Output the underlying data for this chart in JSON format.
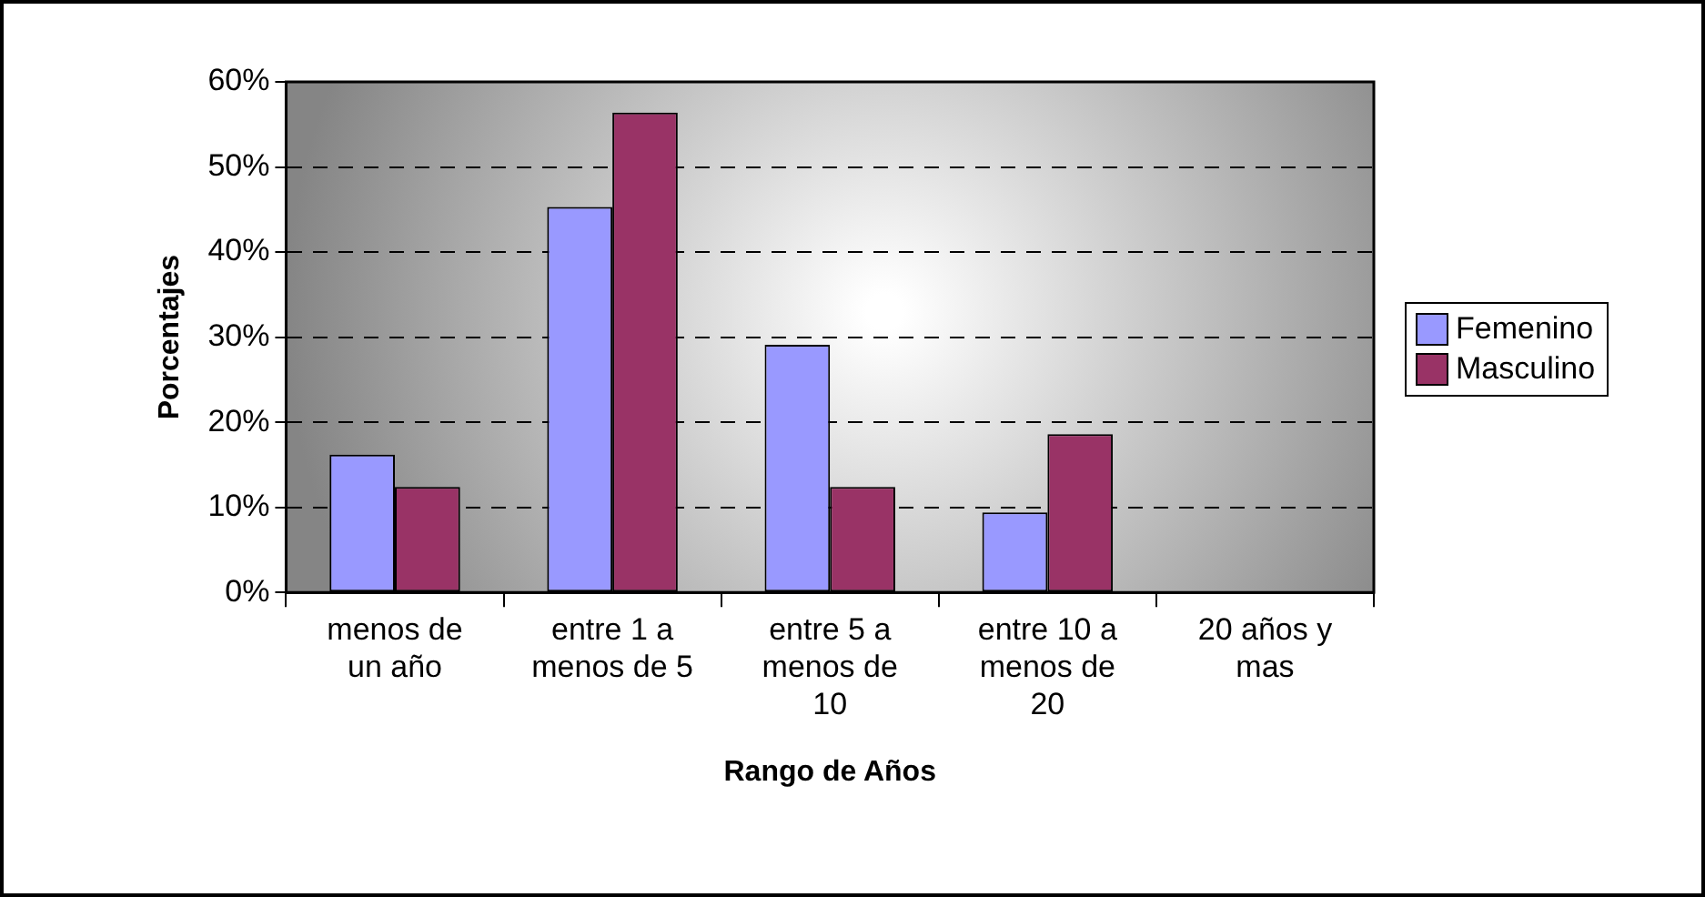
{
  "chart_data": {
    "type": "bar",
    "xlabel": "Rango de Años",
    "ylabel": "Porcentajes",
    "categories": [
      "menos de un año",
      "entre 1 a menos de 5",
      "entre 5 a menos de 10",
      "entre 10 a menos de 20",
      "20 años y mas"
    ],
    "series": [
      {
        "name": "Femenino",
        "color": "#9999ff",
        "values": [
          16.2,
          45.3,
          29.1,
          9.4,
          null
        ]
      },
      {
        "name": "Masculino",
        "color": "#993366",
        "values": [
          12.4,
          56.4,
          12.4,
          18.6,
          null
        ]
      }
    ],
    "ylim": [
      0,
      60
    ],
    "yticks": [
      {
        "value": 0,
        "label": "0%"
      },
      {
        "value": 10,
        "label": "10%"
      },
      {
        "value": 20,
        "label": "20%"
      },
      {
        "value": 30,
        "label": "30%"
      },
      {
        "value": 40,
        "label": "40%"
      },
      {
        "value": 50,
        "label": "50%"
      },
      {
        "value": 60,
        "label": "60%"
      }
    ],
    "grid": "y",
    "legend": "right"
  }
}
